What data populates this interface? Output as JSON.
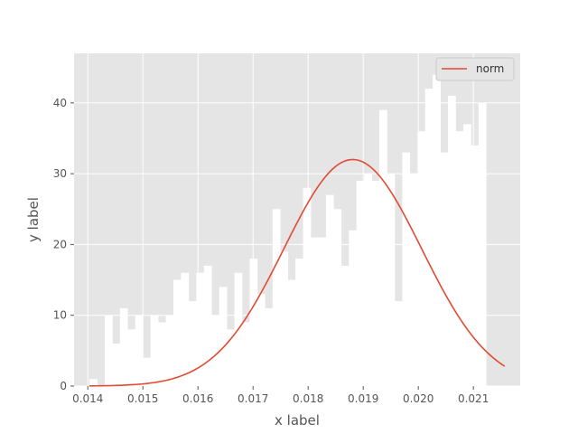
{
  "chart_data": {
    "type": "bar",
    "xlabel": "x label",
    "ylabel": "y label",
    "xlim": [
      0.01375,
      0.02185
    ],
    "ylim": [
      0,
      47
    ],
    "grid": true,
    "legend_position": "top-right",
    "xticks": [
      {
        "value": 0.014,
        "label": "0.014"
      },
      {
        "value": 0.015,
        "label": "0.015"
      },
      {
        "value": 0.016,
        "label": "0.016"
      },
      {
        "value": 0.017,
        "label": "0.017"
      },
      {
        "value": 0.018,
        "label": "0.018"
      },
      {
        "value": 0.019,
        "label": "0.019"
      },
      {
        "value": 0.02,
        "label": "0.020"
      },
      {
        "value": 0.021,
        "label": "0.021"
      }
    ],
    "yticks": [
      {
        "value": 0,
        "label": "0"
      },
      {
        "value": 10,
        "label": "10"
      },
      {
        "value": 20,
        "label": "20"
      },
      {
        "value": 30,
        "label": "30"
      },
      {
        "value": 40,
        "label": "40"
      }
    ],
    "bin_start": 0.01403,
    "bin_width": 0.0001385,
    "counts": [
      1,
      0,
      10,
      6,
      11,
      8,
      10,
      4,
      10,
      9,
      10,
      15,
      16,
      12,
      16,
      17,
      10,
      14,
      8,
      16,
      9,
      18,
      13,
      11,
      25,
      19,
      15,
      18,
      28,
      21,
      21,
      27,
      25,
      17,
      22,
      29,
      30,
      29,
      39,
      30,
      12,
      33,
      30,
      36,
      42,
      44,
      33,
      41,
      36,
      37,
      34,
      40
    ],
    "series": [
      {
        "name": "norm",
        "type": "line",
        "color": "#E24A33",
        "mean": 0.01881,
        "sigma": 0.00125,
        "peak": 32,
        "x_range": [
          0.01403,
          0.02157
        ]
      }
    ],
    "colors": {
      "bar_fill": "#ffffff",
      "plot_background": "#E5E5E5",
      "grid": "#ffffff"
    }
  }
}
